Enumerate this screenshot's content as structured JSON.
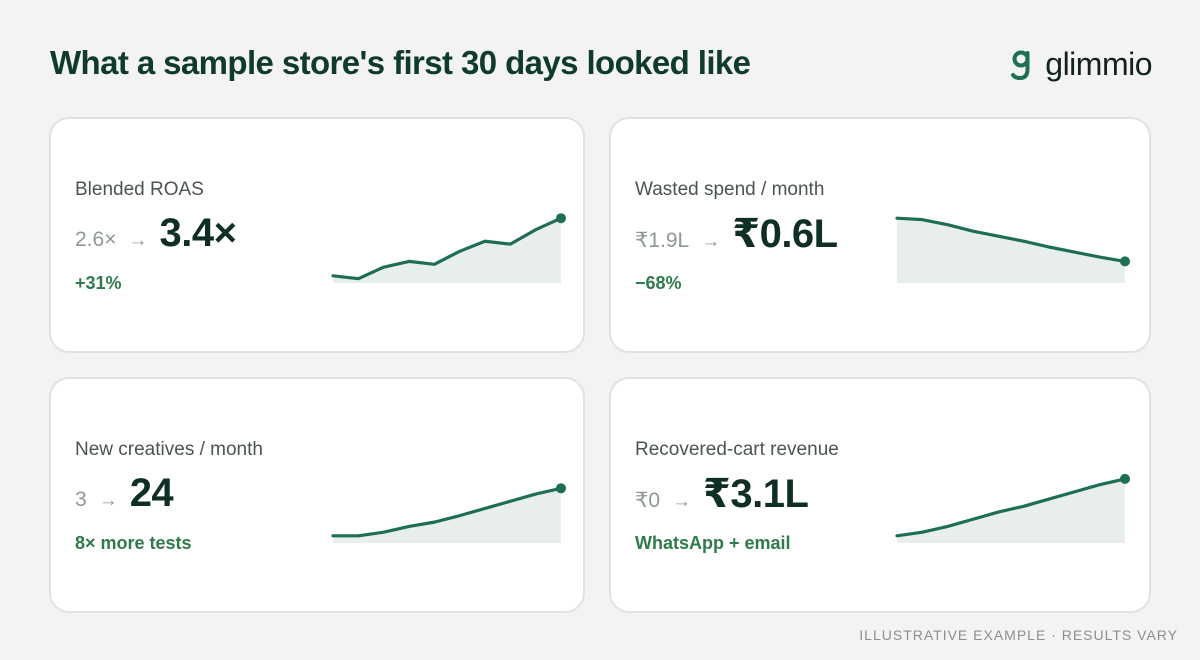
{
  "header": {
    "title": "What a sample store's first 30 days looked like",
    "brand": "glimmio"
  },
  "colors": {
    "accent": "#1e6e55",
    "fill": "#e8eeec",
    "positive": "#2f7a4a",
    "card_bg": "#ffffff",
    "page_bg": "#f3f4f1"
  },
  "cards": [
    {
      "label": "Blended ROAS",
      "from": "2.6×",
      "arrow": "→",
      "to": "3.4×",
      "delta": "+31%",
      "trend": [
        1.0,
        0.6,
        2.2,
        3.0,
        2.6,
        4.4,
        5.8,
        5.4,
        7.4,
        9.0
      ]
    },
    {
      "label": "Wasted spend / month",
      "from": "₹1.9L",
      "arrow": "→",
      "to": "₹0.6L",
      "delta": "−68%",
      "trend": [
        9.0,
        8.8,
        8.1,
        7.2,
        6.5,
        5.8,
        5.0,
        4.3,
        3.6,
        3.0
      ]
    },
    {
      "label": "New creatives / month",
      "from": "3",
      "arrow": "→",
      "to": "24",
      "delta": "8× more tests",
      "trend": [
        1.0,
        1.0,
        1.5,
        2.3,
        2.9,
        3.8,
        4.8,
        5.8,
        6.8,
        7.6
      ]
    },
    {
      "label": "Recovered-cart revenue",
      "from": "₹0",
      "arrow": "→",
      "to": "₹3.1L",
      "delta": "WhatsApp + email",
      "trend": [
        1.0,
        1.5,
        2.3,
        3.3,
        4.3,
        5.1,
        6.1,
        7.1,
        8.1,
        8.9
      ]
    }
  ],
  "footer": {
    "note": "ILLUSTRATIVE EXAMPLE · RESULTS VARY"
  }
}
